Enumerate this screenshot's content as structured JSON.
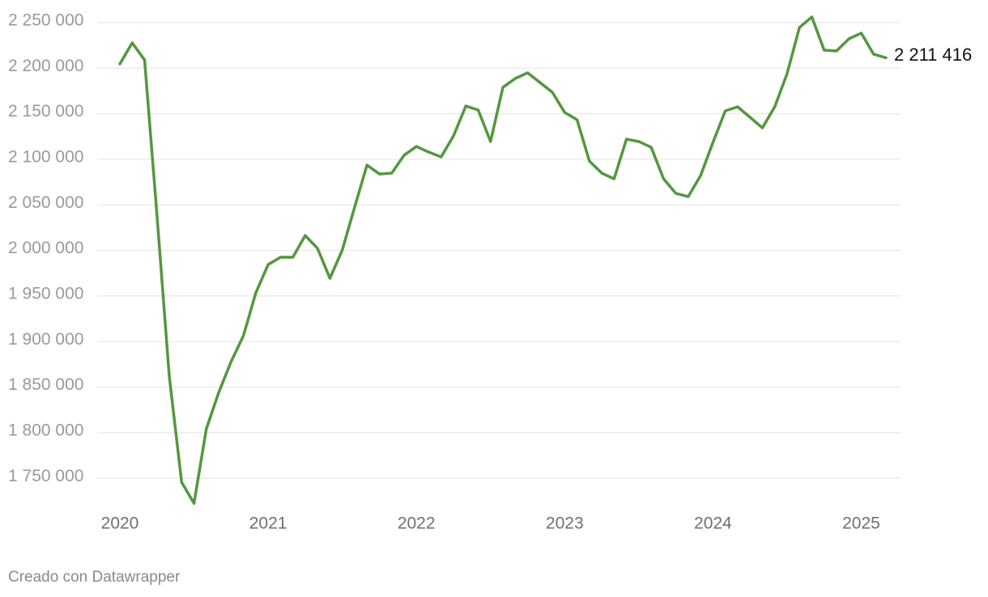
{
  "chart_data": {
    "type": "line",
    "credit": "Creado con Datawrapper",
    "x": [
      2020,
      2020.0833,
      2020.1667,
      2020.25,
      2020.3333,
      2020.4167,
      2020.5,
      2020.5833,
      2020.6667,
      2020.75,
      2020.8333,
      2020.9167,
      2021,
      2021.0833,
      2021.1667,
      2021.25,
      2021.3333,
      2021.4167,
      2021.5,
      2021.5833,
      2021.6667,
      2021.75,
      2021.8333,
      2021.9167,
      2022,
      2022.0833,
      2022.1667,
      2022.25,
      2022.3333,
      2022.4167,
      2022.5,
      2022.5833,
      2022.6667,
      2022.75,
      2022.8333,
      2022.9167,
      2023,
      2023.0833,
      2023.1667,
      2023.25,
      2023.3333,
      2023.4167,
      2023.5,
      2023.5833,
      2023.6667,
      2023.75,
      2023.8333,
      2023.9167,
      2024,
      2024.0833,
      2024.1667,
      2024.25,
      2024.3333,
      2024.4167,
      2024.5,
      2024.5833,
      2024.6667,
      2024.75,
      2024.8333,
      2024.9167,
      2025,
      2025.0833,
      2025.1667
    ],
    "series": [
      {
        "color": "#54973f",
        "values": [
          2204700,
          2227800,
          2209100,
          2039500,
          1861900,
          1745600,
          1722500,
          1804200,
          1844100,
          1877900,
          1906300,
          1953400,
          1984500,
          1992500,
          1992500,
          2016400,
          2002200,
          1969400,
          2000400,
          2047500,
          2093700,
          2083900,
          2084800,
          2104400,
          2114100,
          2107900,
          2102600,
          2125700,
          2158500,
          2154100,
          2119500,
          2179000,
          2188700,
          2194900,
          2184300,
          2173600,
          2151400,
          2143400,
          2098100,
          2084800,
          2078600,
          2122100,
          2119500,
          2113200,
          2078600,
          2062600,
          2059100,
          2082200,
          2118600,
          2153200,
          2157600,
          2146100,
          2134500,
          2157600,
          2194100,
          2244700,
          2256200,
          2219800,
          2218900,
          2232200,
          2238500,
          2215400,
          2211416
        ],
        "value_labels": [
          null,
          null,
          null,
          null,
          null,
          null,
          null,
          null,
          null,
          null,
          null,
          null,
          null,
          null,
          null,
          null,
          null,
          null,
          null,
          null,
          null,
          null,
          null,
          null,
          null,
          null,
          null,
          null,
          null,
          null,
          null,
          null,
          null,
          null,
          null,
          null,
          null,
          null,
          null,
          null,
          null,
          null,
          null,
          null,
          null,
          null,
          null,
          null,
          null,
          null,
          null,
          null,
          null,
          null,
          null,
          null,
          null,
          null,
          null,
          null,
          null,
          null,
          "2 211 416"
        ]
      }
    ],
    "xlim": [
      2020,
      2025.1667
    ],
    "xticks": [
      2020,
      2021,
      2022,
      2023,
      2024,
      2025
    ],
    "ylim": [
      1720000,
      2260000
    ],
    "yticks": [
      {
        "value": 1750000,
        "label": "1 750 000"
      },
      {
        "value": 1800000,
        "label": "1 800 000"
      },
      {
        "value": 1850000,
        "label": "1 850 000"
      },
      {
        "value": 1900000,
        "label": "1 900 000"
      },
      {
        "value": 1950000,
        "label": "1 950 000"
      },
      {
        "value": 2000000,
        "label": "2 000 000"
      },
      {
        "value": 2050000,
        "label": "2 050 000"
      },
      {
        "value": 2100000,
        "label": "2 100 000"
      },
      {
        "value": 2150000,
        "label": "2 150 000"
      },
      {
        "value": 2200000,
        "label": "2 200 000"
      },
      {
        "value": 2250000,
        "label": "2 250 000"
      }
    ],
    "grid": true
  }
}
